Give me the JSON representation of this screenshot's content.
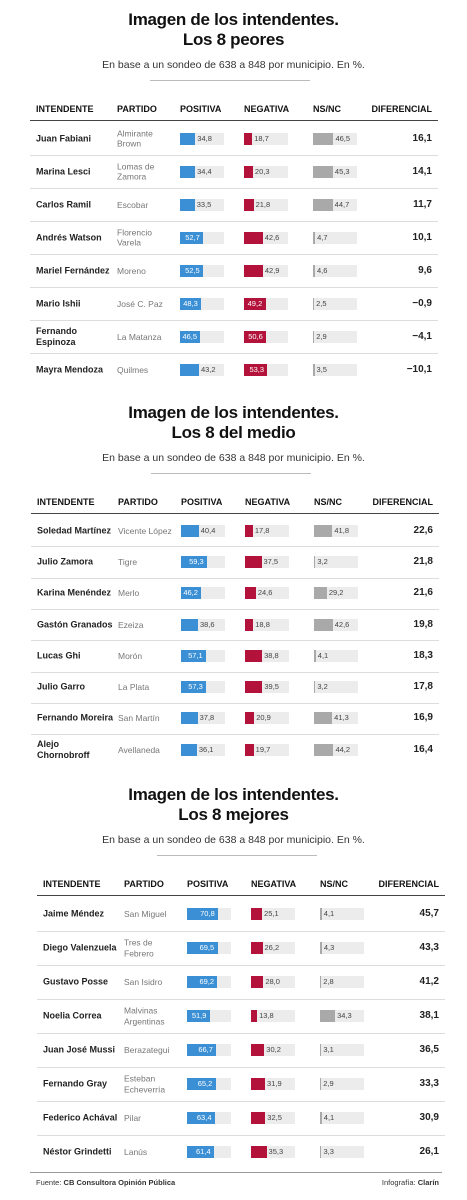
{
  "columns": [
    "INTENDENTE",
    "PARTIDO",
    "POSITIVA",
    "NEGATIVA",
    "NS/NC",
    "DIFERENCIAL"
  ],
  "colors": [
    "#3b8fd4",
    "#b3123b",
    "#a9a9a9"
  ],
  "tables": [
    {
      "title_lines": [
        "Imagen de los intendentes.",
        "Los 8 peores"
      ],
      "subtitle": "En base a un sondeo de 638 a 848 por municipio. En %.",
      "rows": [
        {
          "intendente": "Juan Fabiani",
          "partido": "Almirante Brown",
          "values": [
            34.8,
            18.7,
            46.5
          ],
          "value_labels": [
            "34,8",
            "18,7",
            "46,5"
          ],
          "diferencial": "16,1"
        },
        {
          "intendente": "Marina Lesci",
          "partido": "Lomas de Zamora",
          "values": [
            34.4,
            20.3,
            45.3
          ],
          "value_labels": [
            "34,4",
            "20,3",
            "45,3"
          ],
          "diferencial": "14,1"
        },
        {
          "intendente": "Carlos Ramil",
          "partido": "Escobar",
          "values": [
            33.5,
            21.8,
            44.7
          ],
          "value_labels": [
            "33,5",
            "21,8",
            "44,7"
          ],
          "diferencial": "11,7"
        },
        {
          "intendente": "Andrés Watson",
          "partido": "Florencio Varela",
          "values": [
            52.7,
            42.6,
            4.7
          ],
          "value_labels": [
            "52,7",
            "42,6",
            "4,7"
          ],
          "diferencial": "10,1"
        },
        {
          "intendente": "Mariel Fernández",
          "partido": "Moreno",
          "values": [
            52.5,
            42.9,
            4.6
          ],
          "value_labels": [
            "52,5",
            "42,9",
            "4,6"
          ],
          "diferencial": "9,6"
        },
        {
          "intendente": "Mario Ishii",
          "partido": "José C. Paz",
          "values": [
            48.3,
            49.2,
            2.5
          ],
          "value_labels": [
            "48,3",
            "49,2",
            "2,5"
          ],
          "diferencial": "−0,9"
        },
        {
          "intendente": "Fernando Espinoza",
          "partido": "La Matanza",
          "values": [
            46.5,
            50.6,
            2.9
          ],
          "value_labels": [
            "46,5",
            "50,6",
            "2,9"
          ],
          "diferencial": "−4,1"
        },
        {
          "intendente": "Mayra Mendoza",
          "partido": "Quilmes",
          "values": [
            43.2,
            53.3,
            3.5
          ],
          "value_labels": [
            "43,2",
            "53,3",
            "3,5"
          ],
          "diferencial": "−10,1"
        }
      ]
    },
    {
      "title_lines": [
        "Imagen de los intendentes.",
        "Los 8 del medio"
      ],
      "subtitle": "En base a un sondeo de 638 a 848 por municipio. En %.",
      "rows": [
        {
          "intendente": "Soledad Martínez",
          "partido": "Vicente López",
          "values": [
            40.4,
            17.8,
            41.8
          ],
          "value_labels": [
            "40,4",
            "17,8",
            "41,8"
          ],
          "diferencial": "22,6"
        },
        {
          "intendente": "Julio Zamora",
          "partido": "Tigre",
          "values": [
            59.3,
            37.5,
            3.2
          ],
          "value_labels": [
            "59,3",
            "37,5",
            "3,2"
          ],
          "diferencial": "21,8"
        },
        {
          "intendente": "Karina Menéndez",
          "partido": "Merlo",
          "values": [
            46.2,
            24.6,
            29.2
          ],
          "value_labels": [
            "46,2",
            "24,6",
            "29,2"
          ],
          "diferencial": "21,6"
        },
        {
          "intendente": "Gastón Granados",
          "partido": "Ezeiza",
          "values": [
            38.6,
            18.8,
            42.6
          ],
          "value_labels": [
            "38,6",
            "18,8",
            "42,6"
          ],
          "diferencial": "19,8"
        },
        {
          "intendente": "Lucas Ghi",
          "partido": "Morón",
          "values": [
            57.1,
            38.8,
            4.1
          ],
          "value_labels": [
            "57,1",
            "38,8",
            "4,1"
          ],
          "diferencial": "18,3"
        },
        {
          "intendente": "Julio Garro",
          "partido": "La Plata",
          "values": [
            57.3,
            39.5,
            3.2
          ],
          "value_labels": [
            "57,3",
            "39,5",
            "3,2"
          ],
          "diferencial": "17,8"
        },
        {
          "intendente": "Fernando Moreira",
          "partido": "San Martín",
          "values": [
            37.8,
            20.9,
            41.3
          ],
          "value_labels": [
            "37,8",
            "20,9",
            "41,3"
          ],
          "diferencial": "16,9"
        },
        {
          "intendente": "Alejo Chornobroff",
          "partido": "Avellaneda",
          "values": [
            36.1,
            19.7,
            44.2
          ],
          "value_labels": [
            "36,1",
            "19,7",
            "44,2"
          ],
          "diferencial": "16,4"
        }
      ]
    },
    {
      "title_lines": [
        "Imagen de los intendentes.",
        "Los 8 mejores"
      ],
      "subtitle": "En base a un sondeo de 638 a 848 por municipio. En %.",
      "rows": [
        {
          "intendente": "Jaime Méndez",
          "partido": "San Miguel",
          "values": [
            70.8,
            25.1,
            4.1
          ],
          "value_labels": [
            "70,8",
            "25,1",
            "4,1"
          ],
          "diferencial": "45,7"
        },
        {
          "intendente": "Diego Valenzuela",
          "partido": "Tres de Febrero",
          "values": [
            69.5,
            26.2,
            4.3
          ],
          "value_labels": [
            "69,5",
            "26,2",
            "4,3"
          ],
          "diferencial": "43,3"
        },
        {
          "intendente": "Gustavo Posse",
          "partido": "San Isidro",
          "values": [
            69.2,
            28.0,
            2.8
          ],
          "value_labels": [
            "69,2",
            "28,0",
            "2,8"
          ],
          "diferencial": "41,2"
        },
        {
          "intendente": "Noelia Correa",
          "partido": "Malvinas Argentinas",
          "values": [
            51.9,
            13.8,
            34.3
          ],
          "value_labels": [
            "51,9",
            "13,8",
            "34,3"
          ],
          "diferencial": "38,1"
        },
        {
          "intendente": "Juan José Mussi",
          "partido": "Berazategui",
          "values": [
            66.7,
            30.2,
            3.1
          ],
          "value_labels": [
            "66,7",
            "30,2",
            "3,1"
          ],
          "diferencial": "36,5"
        },
        {
          "intendente": "Fernando Gray",
          "partido": "Esteban Echeverría",
          "values": [
            65.2,
            31.9,
            2.9
          ],
          "value_labels": [
            "65,2",
            "31,9",
            "2,9"
          ],
          "diferencial": "33,3"
        },
        {
          "intendente": "Federico Achával",
          "partido": "Pilar",
          "values": [
            63.4,
            32.5,
            4.1
          ],
          "value_labels": [
            "63,4",
            "32,5",
            "4,1"
          ],
          "diferencial": "30,9"
        },
        {
          "intendente": "Néstor Grindetti",
          "partido": "Lanús",
          "values": [
            61.4,
            35.3,
            3.3
          ],
          "value_labels": [
            "61,4",
            "35,3",
            "3,3"
          ],
          "diferencial": "26,1"
        }
      ]
    }
  ],
  "footer": {
    "source_label": "Fuente:",
    "source": "CB Consultora Opinión Pública",
    "credit_label": "Infografía:",
    "credit": "Clarín"
  }
}
